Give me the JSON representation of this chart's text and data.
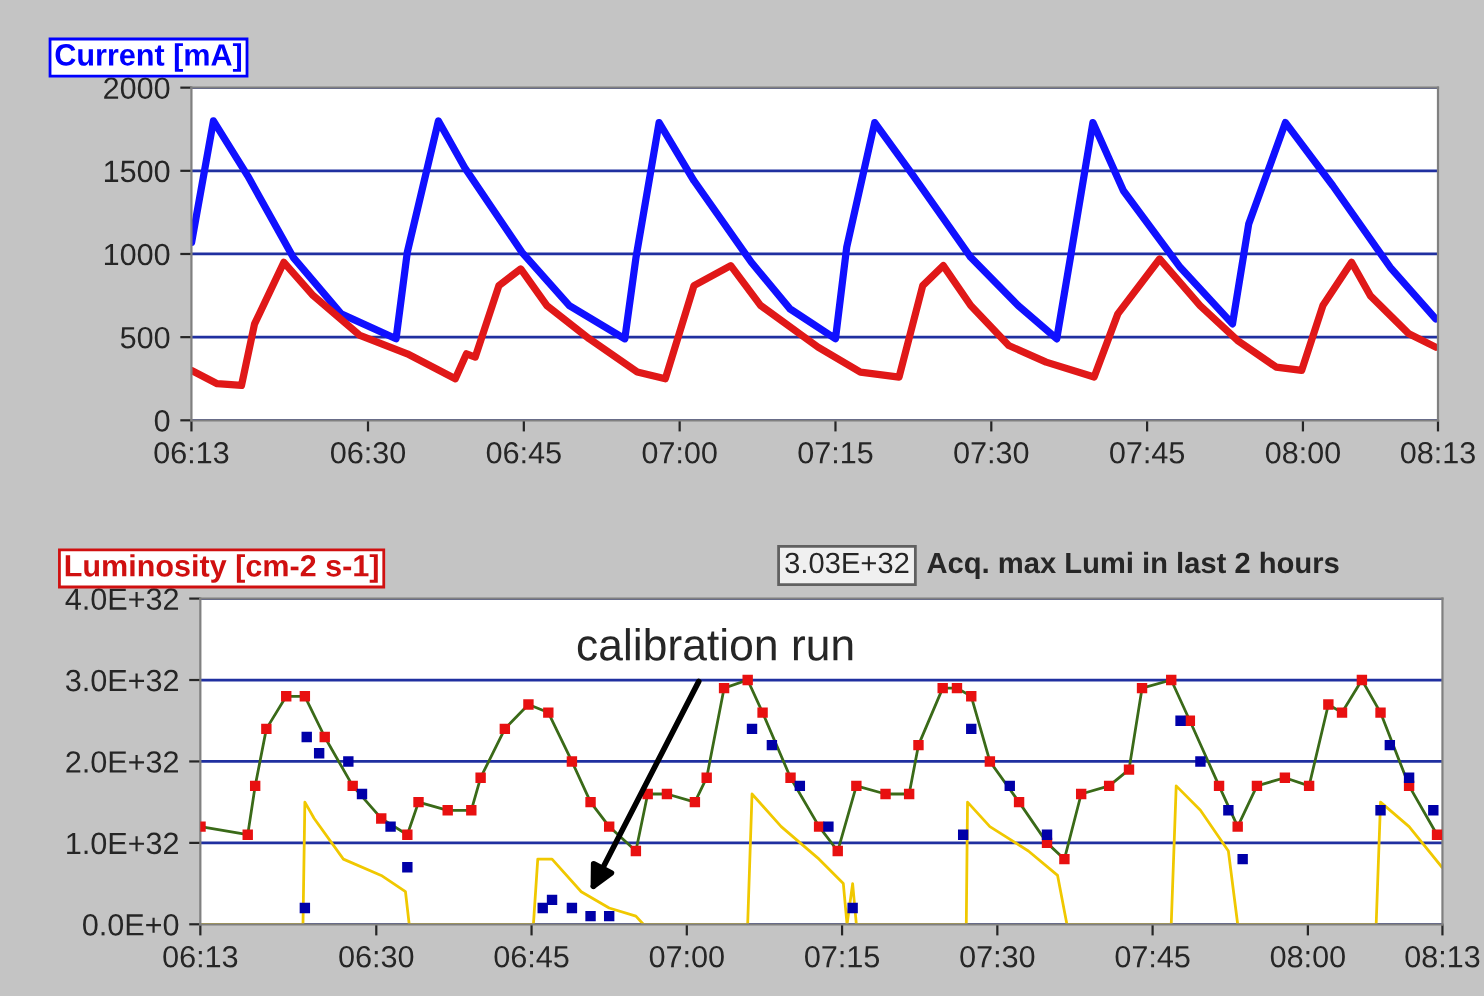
{
  "chart_data": [
    {
      "type": "line",
      "title": "Current [mA]",
      "xlim": [
        6.2167,
        8.2167
      ],
      "xticks": [
        {
          "value": 6.2167,
          "label": "06:13"
        },
        {
          "value": 6.5,
          "label": "06:30"
        },
        {
          "value": 6.75,
          "label": "06:45"
        },
        {
          "value": 7,
          "label": "07:00"
        },
        {
          "value": 7.25,
          "label": "07:15"
        },
        {
          "value": 7.5,
          "label": "07:30"
        },
        {
          "value": 7.75,
          "label": "07:45"
        },
        {
          "value": 8,
          "label": "08:00"
        },
        {
          "value": 8.2167,
          "label": "08:13"
        }
      ],
      "ylim": [
        0,
        2000
      ],
      "yticks": [
        0,
        500,
        1000,
        1500,
        2000
      ],
      "grid": "y",
      "series": [
        {
          "color": "#1010ff",
          "x": [
            6.217,
            6.252,
            6.307,
            6.38,
            6.457,
            6.545,
            6.563,
            6.613,
            6.655,
            6.747,
            6.823,
            6.912,
            6.93,
            6.967,
            7.023,
            7.115,
            7.177,
            7.25,
            7.268,
            7.313,
            7.375,
            7.467,
            7.543,
            7.605,
            7.627,
            7.663,
            7.712,
            7.803,
            7.887,
            7.913,
            7.972,
            8.048,
            8.14,
            8.213
          ],
          "values": [
            1070,
            1800,
            1470,
            980,
            640,
            490,
            1010,
            1800,
            1520,
            1010,
            690,
            490,
            980,
            1790,
            1440,
            950,
            670,
            490,
            1040,
            1790,
            1470,
            980,
            690,
            490,
            980,
            1790,
            1380,
            920,
            580,
            1180,
            1790,
            1410,
            920,
            610
          ]
        },
        {
          "color": "#e01818",
          "x": [
            6.217,
            6.258,
            6.297,
            6.318,
            6.365,
            6.412,
            6.487,
            6.563,
            6.64,
            6.658,
            6.672,
            6.71,
            6.745,
            6.787,
            6.855,
            6.932,
            6.977,
            7.023,
            7.082,
            7.13,
            7.222,
            7.29,
            7.352,
            7.39,
            7.423,
            7.467,
            7.528,
            7.588,
            7.665,
            7.703,
            7.77,
            7.835,
            7.895,
            7.957,
            7.998,
            8.032,
            8.078,
            8.108,
            8.17,
            8.213
          ],
          "values": [
            300,
            220,
            210,
            580,
            950,
            750,
            510,
            400,
            250,
            400,
            380,
            810,
            910,
            690,
            490,
            290,
            250,
            810,
            930,
            690,
            440,
            290,
            260,
            810,
            930,
            690,
            450,
            350,
            260,
            640,
            970,
            690,
            480,
            320,
            300,
            690,
            950,
            750,
            520,
            440
          ]
        }
      ]
    },
    {
      "type": "line",
      "title": "Luminosity [cm-2 s-1]",
      "xlim": [
        6.2167,
        8.2167
      ],
      "xticks": [
        {
          "value": 6.2167,
          "label": "06:13"
        },
        {
          "value": 6.5,
          "label": "06:30"
        },
        {
          "value": 6.75,
          "label": "06:45"
        },
        {
          "value": 7,
          "label": "07:00"
        },
        {
          "value": 7.25,
          "label": "07:15"
        },
        {
          "value": 7.5,
          "label": "07:30"
        },
        {
          "value": 7.75,
          "label": "07:45"
        },
        {
          "value": 8,
          "label": "08:00"
        },
        {
          "value": 8.2167,
          "label": "08:13"
        }
      ],
      "ylim": [
        0,
        4e+32
      ],
      "yticks": [
        {
          "value": 0,
          "label": "0.0E+0"
        },
        {
          "value": 1e+32,
          "label": "1.0E+32"
        },
        {
          "value": 2e+32,
          "label": "2.0E+32"
        },
        {
          "value": 3e+32,
          "label": "3.0E+32"
        },
        {
          "value": 4e+32,
          "label": "4.0E+32"
        }
      ],
      "grid": "y",
      "annotations": [
        "3.03E+32",
        "Acq. max Lumi in last 2 hours",
        {
          "text": "calibration run",
          "x": 6.845,
          "y": 4e+31
        }
      ],
      "x": [
        6.217,
        6.293,
        6.305,
        6.323,
        6.355,
        6.385,
        6.417,
        6.462,
        6.508,
        6.55,
        6.568,
        6.615,
        6.653,
        6.668,
        6.707,
        6.745,
        6.777,
        6.815,
        6.845,
        6.875,
        6.918,
        6.937,
        6.968,
        7.013,
        7.032,
        7.06,
        7.098,
        7.122,
        7.167,
        7.213,
        7.243,
        7.273,
        7.32,
        7.358,
        7.373,
        7.412,
        7.435,
        7.458,
        7.488,
        7.535,
        7.58,
        7.608,
        7.635,
        7.68,
        7.712,
        7.733,
        7.78,
        7.81,
        7.857,
        7.887,
        7.918,
        7.963,
        8.002,
        8.033,
        8.055,
        8.087,
        8.117,
        8.163,
        8.208
      ],
      "series": [
        {
          "color": "#f0c800",
          "x": [
            6.217,
            6.382,
            6.385,
            6.4,
            6.447,
            6.508,
            6.547,
            6.553,
            6.753,
            6.76,
            6.783,
            6.83,
            6.875,
            6.918,
            6.93,
            7.098,
            7.105,
            7.152,
            7.213,
            7.252,
            7.258,
            7.267,
            7.273,
            7.45,
            7.452,
            7.488,
            7.55,
            7.597,
            7.612,
            7.78,
            7.788,
            7.827,
            7.872,
            7.887,
            8.11,
            8.117,
            8.163,
            8.216
          ],
          "values": [
            0,
            0,
            1.5e+32,
            1.3e+32,
            8e+31,
            6e+31,
            4e+31,
            0,
            0,
            8e+31,
            8e+31,
            4e+31,
            2e+31,
            1e+31,
            0,
            0,
            1.6e+32,
            1.2e+32,
            8e+31,
            5e+31,
            0,
            5e+31,
            0,
            0,
            1.5e+32,
            1.2e+32,
            9e+31,
            6e+31,
            0,
            0,
            1.7e+32,
            1.4e+32,
            9e+31,
            0,
            0,
            1.5e+32,
            1.2e+32,
            7e+31
          ]
        },
        {
          "color": "#3a6a18",
          "values": [
            1.2e+32,
            1.1e+32,
            1.7e+32,
            2.4e+32,
            2.8e+32,
            2.8e+32,
            2.3e+32,
            1.7e+32,
            1.3e+32,
            1.1e+32,
            1.5e+32,
            1.4e+32,
            1.4e+32,
            1.8e+32,
            2.4e+32,
            2.7e+32,
            2.6e+32,
            2e+32,
            1.5e+32,
            1.2e+32,
            9e+31,
            1.6e+32,
            1.6e+32,
            1.5e+32,
            1.8e+32,
            2.9e+32,
            3e+32,
            2.6e+32,
            1.8e+32,
            1.2e+32,
            9e+31,
            1.7e+32,
            1.6e+32,
            1.6e+32,
            2.2e+32,
            2.9e+32,
            2.9e+32,
            2.8e+32,
            2e+32,
            1.5e+32,
            1e+32,
            8e+31,
            1.6e+32,
            1.7e+32,
            1.9e+32,
            2.9e+32,
            3e+32,
            2.5e+32,
            1.7e+32,
            1.2e+32,
            1.7e+32,
            1.8e+32,
            1.7e+32,
            2.7e+32,
            2.6e+32,
            3e+32,
            2.6e+32,
            1.7e+32,
            1.1e+32
          ]
        },
        {
          "type": "scatter",
          "marker": "square",
          "color": "#e81010",
          "values": [
            1.2e+32,
            1.1e+32,
            1.7e+32,
            2.4e+32,
            2.8e+32,
            2.8e+32,
            2.3e+32,
            1.7e+32,
            1.3e+32,
            1.1e+32,
            1.5e+32,
            1.4e+32,
            1.4e+32,
            1.8e+32,
            2.4e+32,
            2.7e+32,
            2.6e+32,
            2e+32,
            1.5e+32,
            1.2e+32,
            9e+31,
            1.6e+32,
            1.6e+32,
            1.5e+32,
            1.8e+32,
            2.9e+32,
            3e+32,
            2.6e+32,
            1.8e+32,
            1.2e+32,
            9e+31,
            1.7e+32,
            1.6e+32,
            1.6e+32,
            2.2e+32,
            2.9e+32,
            2.9e+32,
            2.8e+32,
            2e+32,
            1.5e+32,
            1e+32,
            8e+31,
            1.6e+32,
            1.7e+32,
            1.9e+32,
            2.9e+32,
            3e+32,
            2.5e+32,
            1.7e+32,
            1.2e+32,
            1.7e+32,
            1.8e+32,
            1.7e+32,
            2.7e+32,
            2.6e+32,
            3e+32,
            2.6e+32,
            1.7e+32,
            1.1e+32
          ]
        },
        {
          "type": "scatter",
          "marker": "square",
          "color": "#0000a8",
          "x": [
            6.385,
            6.388,
            6.408,
            6.455,
            6.477,
            6.523,
            6.55,
            6.768,
            6.783,
            6.815,
            6.845,
            6.875,
            7.105,
            7.137,
            7.182,
            7.228,
            7.267,
            7.445,
            7.458,
            7.52,
            7.58,
            7.795,
            7.827,
            7.872,
            7.895,
            8.117,
            8.132,
            8.163,
            8.202
          ],
          "values": [
            2e+31,
            2.3e+32,
            2.1e+32,
            2e+32,
            1.6e+32,
            1.2e+32,
            7e+31,
            2e+31,
            3e+31,
            2e+31,
            1e+31,
            1e+31,
            2.4e+32,
            2.2e+32,
            1.7e+32,
            1.2e+32,
            2e+31,
            1.1e+32,
            2.4e+32,
            1.7e+32,
            1.1e+32,
            2.5e+32,
            2e+32,
            1.4e+32,
            8e+31,
            1.4e+32,
            2.2e+32,
            1.8e+32,
            1.4e+32
          ]
        }
      ]
    }
  ]
}
